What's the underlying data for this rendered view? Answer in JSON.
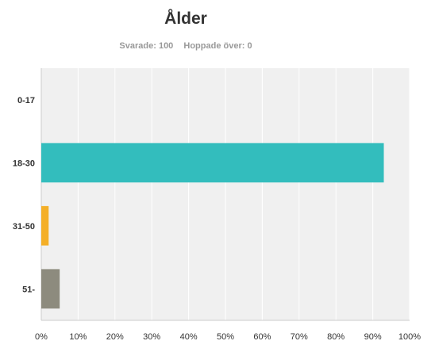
{
  "header": {
    "title": "Ålder",
    "answered": "Svarade: 100",
    "skipped": "Hoppade över: 0"
  },
  "chart_data": {
    "type": "bar",
    "orientation": "horizontal",
    "title": "Ålder",
    "categories": [
      "0-17",
      "18-30",
      "31-50",
      "51-"
    ],
    "values": [
      0,
      93,
      2,
      5
    ],
    "colors": [
      "#33bdbd",
      "#33bdbd",
      "#f4af27",
      "#8d8b7e"
    ],
    "xlim": [
      0,
      100
    ],
    "x_ticks": [
      0,
      10,
      20,
      30,
      40,
      50,
      60,
      70,
      80,
      90,
      100
    ],
    "x_tick_labels": [
      "0%",
      "10%",
      "20%",
      "30%",
      "40%",
      "50%",
      "60%",
      "70%",
      "80%",
      "90%",
      "100%"
    ],
    "grid": true,
    "plot_background": "#f0f0f0",
    "grid_color": "#ffffff"
  }
}
